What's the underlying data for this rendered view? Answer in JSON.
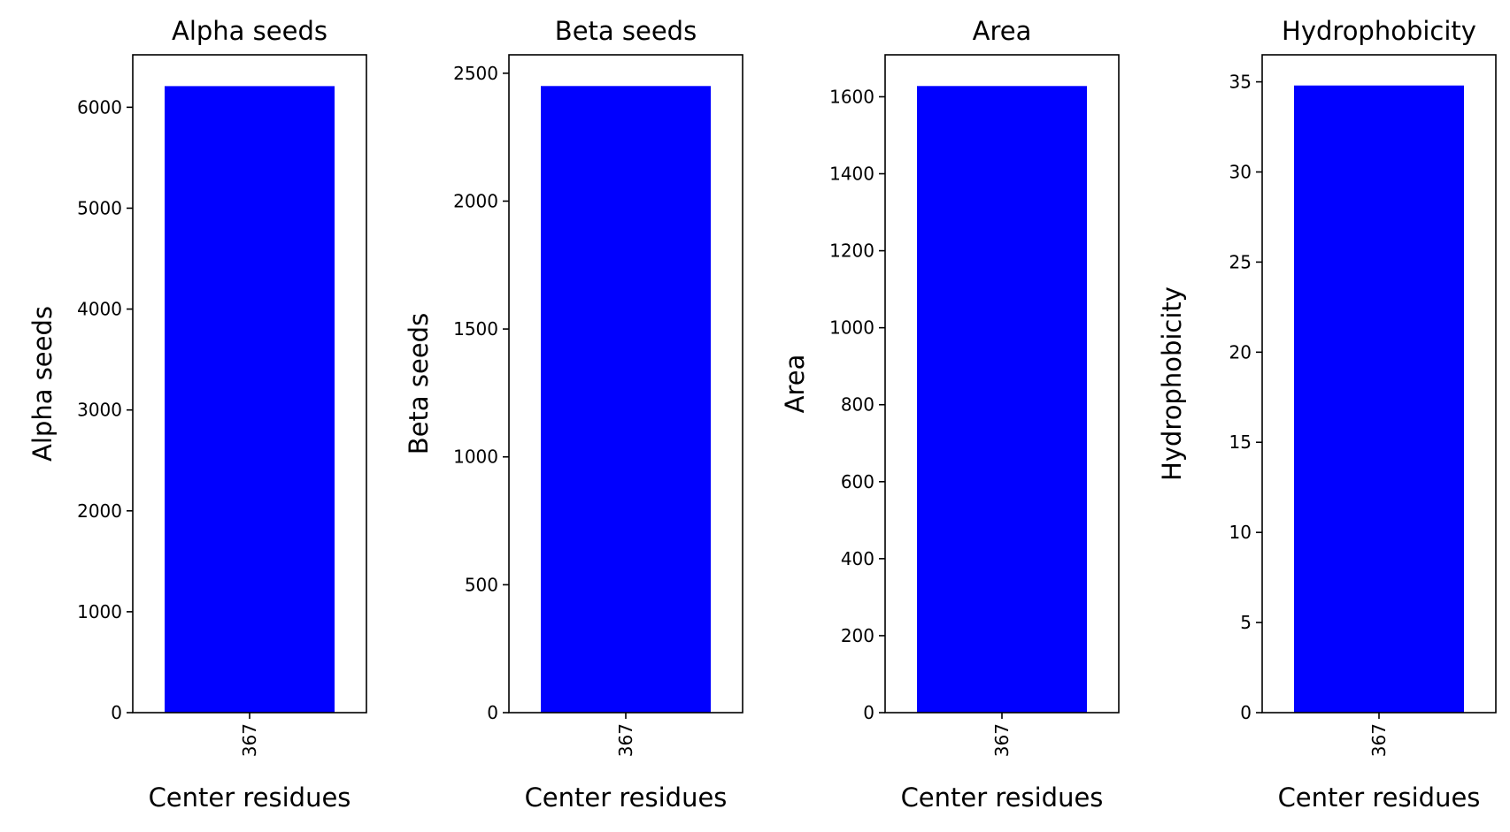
{
  "chart_data": [
    {
      "type": "bar",
      "title": "Alpha seeds",
      "xlabel": "Center residues",
      "ylabel": "Alpha seeds",
      "categories": [
        "367"
      ],
      "values": [
        6210
      ],
      "ylim": [
        0,
        6520
      ],
      "yticks": [
        0,
        1000,
        2000,
        3000,
        4000,
        5000,
        6000
      ],
      "color": "#0000ff",
      "grid": false
    },
    {
      "type": "bar",
      "title": "Beta seeds",
      "xlabel": "Center residues",
      "ylabel": "Beta seeds",
      "categories": [
        "367"
      ],
      "values": [
        2450
      ],
      "ylim": [
        0,
        2572
      ],
      "yticks": [
        0,
        500,
        1000,
        1500,
        2000,
        2500
      ],
      "color": "#0000ff",
      "grid": false
    },
    {
      "type": "bar",
      "title": "Area",
      "xlabel": "Center residues",
      "ylabel": "Area",
      "categories": [
        "367"
      ],
      "values": [
        1628
      ],
      "ylim": [
        0,
        1709
      ],
      "yticks": [
        0,
        200,
        400,
        600,
        800,
        1000,
        1200,
        1400,
        1600
      ],
      "color": "#0000ff",
      "grid": false
    },
    {
      "type": "bar",
      "title": "Hydrophobicity",
      "xlabel": "Center residues",
      "ylabel": "Hydrophobicity",
      "categories": [
        "367"
      ],
      "values": [
        34.8
      ],
      "ylim": [
        0,
        36.5
      ],
      "yticks": [
        0,
        5,
        10,
        15,
        20,
        25,
        30,
        35
      ],
      "color": "#0000ff",
      "grid": false
    }
  ]
}
